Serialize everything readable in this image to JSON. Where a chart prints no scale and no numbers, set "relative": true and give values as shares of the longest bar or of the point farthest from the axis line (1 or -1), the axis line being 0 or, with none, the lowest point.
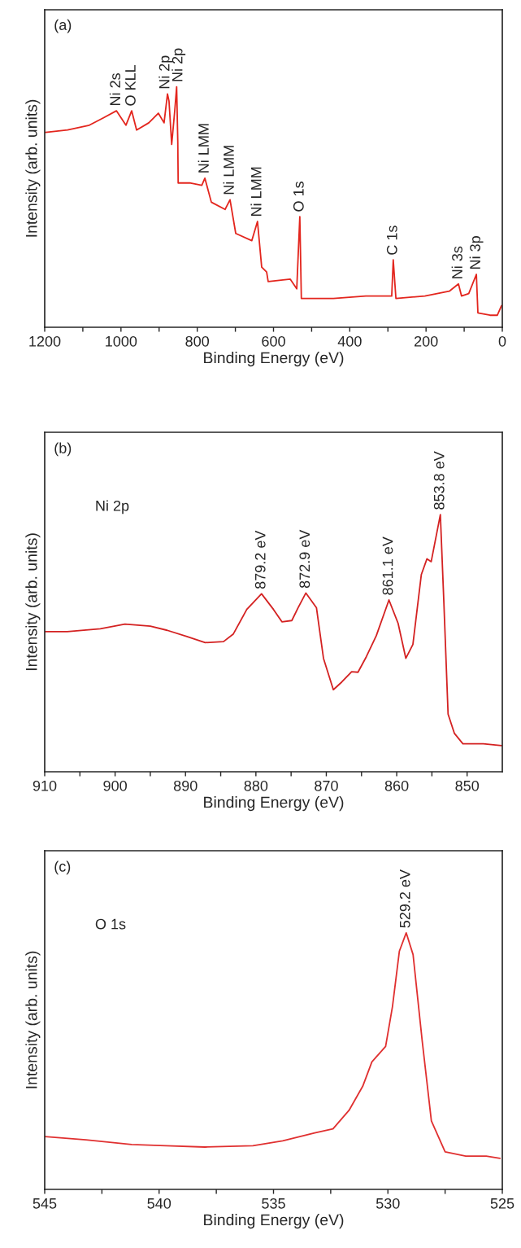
{
  "chart_data": [
    {
      "type": "line",
      "xlabel": "Binding Energy (eV)",
      "ylabel": "Intensity (arb. units)",
      "relative": true,
      "xlim": [
        1200,
        0
      ],
      "xticks": [
        0,
        200,
        400,
        600,
        800,
        1000,
        1200,
        {
          "value": 100,
          "label": null
        },
        {
          "value": 300,
          "label": null
        },
        {
          "value": 500,
          "label": null
        },
        {
          "value": 700,
          "label": null
        },
        {
          "value": 900,
          "label": null
        },
        {
          "value": 1100,
          "label": null
        }
      ],
      "series": [
        {
          "color": "#e3261e",
          "x": [
            1198,
            1140,
            1083,
            1047,
            1012,
            987,
            972,
            959,
            927,
            902,
            887,
            878,
            874,
            867,
            859,
            854,
            851,
            850,
            820,
            788,
            780,
            763,
            727,
            714,
            699,
            657,
            642,
            631,
            618,
            614,
            556,
            539,
            531,
            527,
            443,
            358,
            290,
            286,
            279,
            203,
            139,
            115,
            107,
            88,
            68,
            64,
            32,
            13,
            2
          ],
          "values": [
            0.81,
            0.82,
            0.84,
            0.87,
            0.9,
            0.84,
            0.9,
            0.82,
            0.85,
            0.89,
            0.85,
            0.97,
            0.94,
            0.76,
            0.9,
            1.0,
            0.77,
            0.6,
            0.6,
            0.59,
            0.62,
            0.52,
            0.49,
            0.53,
            0.39,
            0.36,
            0.44,
            0.25,
            0.23,
            0.19,
            0.2,
            0.16,
            0.46,
            0.12,
            0.12,
            0.13,
            0.13,
            0.28,
            0.12,
            0.13,
            0.15,
            0.18,
            0.13,
            0.14,
            0.22,
            0.06,
            0.05,
            0.05,
            0.09
          ]
        }
      ],
      "annotations": [
        "(a)",
        {
          "text": "Ni 2s",
          "x": 1012,
          "y": 0.9
        },
        {
          "text": "O KLL",
          "x": 972,
          "y": 0.9
        },
        {
          "text": "Ni 2p",
          "x": 878,
          "y": 0.97
        },
        {
          "text": "Ni 2p",
          "x": 854,
          "y": 1.0
        },
        {
          "text": "Ni LMM",
          "x": 780,
          "y": 0.62
        },
        {
          "text": "Ni LMM",
          "x": 714,
          "y": 0.53
        },
        {
          "text": "Ni LMM",
          "x": 642,
          "y": 0.44
        },
        {
          "text": "O 1s",
          "x": 531,
          "y": 0.46
        },
        {
          "text": "C 1s",
          "x": 286,
          "y": 0.28
        },
        {
          "text": "Ni 3s",
          "x": 115,
          "y": 0.18
        },
        {
          "text": "Ni 3p",
          "x": 68,
          "y": 0.22
        }
      ]
    },
    {
      "type": "line",
      "xlabel": "Binding Energy (eV)",
      "ylabel": "Intensity (arb. units)",
      "relative": true,
      "xlim": [
        910,
        845
      ],
      "xticks": [
        850,
        860,
        870,
        880,
        890,
        900,
        910,
        {
          "value": 855,
          "label": null
        },
        {
          "value": 865,
          "label": null
        },
        {
          "value": 875,
          "label": null
        },
        {
          "value": 885,
          "label": null
        },
        {
          "value": 895,
          "label": null
        },
        {
          "value": 905,
          "label": null
        }
      ],
      "series": [
        {
          "color": "#d42222",
          "x": [
            910,
            906.8,
            902.1,
            898.6,
            895,
            892.6,
            889.8,
            887.2,
            884.6,
            883.2,
            881.3,
            879.2,
            877.5,
            876.3,
            874.9,
            874,
            872.9,
            871.4,
            870.4,
            869,
            867.8,
            866.4,
            865.5,
            864.3,
            862.9,
            861.1,
            859.8,
            858.7,
            857.7,
            856.5,
            855.7,
            855.1,
            853.8,
            853.3,
            852.7,
            851.8,
            850.6,
            847.7,
            845.1
          ],
          "values": [
            0.545,
            0.545,
            0.556,
            0.574,
            0.566,
            0.55,
            0.526,
            0.502,
            0.506,
            0.536,
            0.631,
            0.692,
            0.631,
            0.583,
            0.588,
            0.638,
            0.695,
            0.638,
            0.441,
            0.319,
            0.349,
            0.389,
            0.387,
            0.448,
            0.529,
            0.668,
            0.577,
            0.441,
            0.495,
            0.767,
            0.828,
            0.817,
            1.0,
            0.658,
            0.224,
            0.149,
            0.109,
            0.109,
            0.102
          ]
        }
      ],
      "annotations": [
        "(b)",
        "Ni 2p",
        {
          "text": "879.2 eV",
          "x": 879.2,
          "y": 0.692
        },
        {
          "text": "872.9 eV",
          "x": 872.9,
          "y": 0.695
        },
        {
          "text": "861.1 eV",
          "x": 861.1,
          "y": 0.668
        },
        {
          "text": "853.8 eV",
          "x": 853.8,
          "y": 1.0
        }
      ]
    },
    {
      "type": "line",
      "xlabel": "Binding Energy (eV)",
      "ylabel": "Intensity (arb. units)",
      "relative": true,
      "xlim": [
        545,
        525
      ],
      "xticks": [
        525,
        530,
        535,
        540,
        545,
        {
          "value": 527.5,
          "label": null
        },
        {
          "value": 532.5,
          "label": null
        },
        {
          "value": 537.5,
          "label": null
        },
        {
          "value": 542.5,
          "label": null
        }
      ],
      "series": [
        {
          "color": "#e03030",
          "x": [
            545,
            543.2,
            541.2,
            539.7,
            538,
            535.9,
            534.6,
            533.2,
            532.4,
            531.7,
            531.1,
            530.7,
            530.1,
            529.8,
            529.5,
            529.2,
            528.9,
            528.5,
            528.1,
            527.5,
            526.6,
            525.7,
            525.1
          ],
          "values": [
            0.206,
            0.193,
            0.175,
            0.17,
            0.165,
            0.17,
            0.189,
            0.22,
            0.236,
            0.308,
            0.402,
            0.497,
            0.557,
            0.713,
            0.928,
            1.0,
            0.915,
            0.578,
            0.267,
            0.146,
            0.13,
            0.13,
            0.121
          ]
        }
      ],
      "annotations": [
        "(c)",
        "O 1s",
        {
          "text": "529.2 eV",
          "x": 529.2,
          "y": 1.0
        }
      ]
    }
  ]
}
